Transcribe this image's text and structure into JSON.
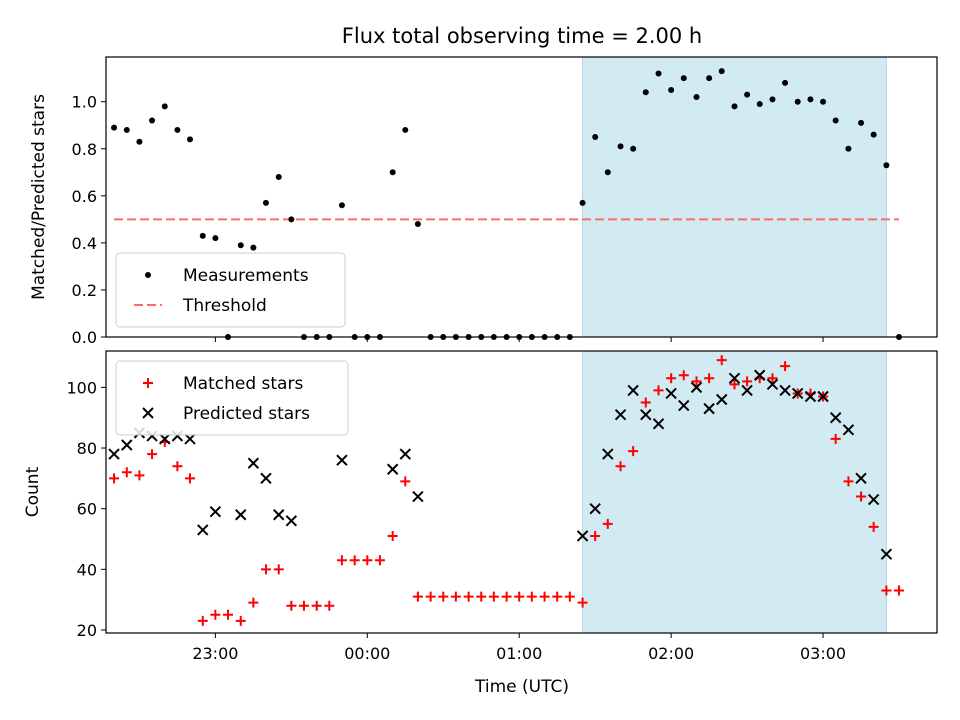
{
  "figure": {
    "title": "Flux total observing time = 2.00 h",
    "xlabel": "Time (UTC)"
  },
  "chart_data": [
    {
      "type": "scatter",
      "panel": "top",
      "ylabel": "Matched/Predicted stars",
      "xlim_hours": [
        -1.72,
        3.75
      ],
      "ylim": [
        0,
        1.19
      ],
      "yticks": [
        0.0,
        0.2,
        0.4,
        0.6,
        0.8,
        1.0
      ],
      "ytick_labels": [
        "0.0",
        "0.2",
        "0.4",
        "0.6",
        "0.8",
        "1.0"
      ],
      "x_tick_labels": [
        "23:00",
        "00:00",
        "01:00",
        "02:00",
        "03:00"
      ],
      "highlight": {
        "x_start_hours": 1.417,
        "x_end_hours": 3.417,
        "color": "#add8e6"
      },
      "threshold": {
        "name": "Threshold",
        "value": 0.5,
        "x_range_hours": [
          -1.667,
          3.5
        ],
        "color": "#ff6b6b"
      },
      "legend_position": "lower-left",
      "series": [
        {
          "name": "Measurements",
          "color": "#000000",
          "x": [
            -1.667,
            -1.583,
            -1.5,
            -1.417,
            -1.333,
            -1.25,
            -1.167,
            -1.083,
            -1.0,
            -0.917,
            -0.833,
            -0.75,
            -0.667,
            -0.583,
            -0.5,
            -0.417,
            -0.333,
            -0.25,
            -0.167,
            -0.083,
            0.0,
            0.083,
            0.167,
            0.25,
            0.333,
            0.417,
            0.5,
            0.583,
            0.667,
            0.75,
            0.833,
            0.917,
            1.0,
            1.083,
            1.167,
            1.25,
            1.333,
            1.417,
            1.5,
            1.583,
            1.667,
            1.75,
            1.833,
            1.917,
            2.0,
            2.083,
            2.167,
            2.25,
            2.333,
            2.417,
            2.5,
            2.583,
            2.667,
            2.75,
            2.833,
            2.917,
            3.0,
            3.083,
            3.167,
            3.25,
            3.333,
            3.417,
            3.5
          ],
          "y": [
            0.89,
            0.88,
            0.83,
            0.92,
            0.98,
            0.88,
            0.84,
            0.43,
            0.42,
            0.0,
            0.39,
            0.38,
            0.57,
            0.68,
            0.5,
            0.0,
            0.0,
            0.0,
            0.56,
            0.0,
            0.0,
            0.0,
            0.7,
            0.88,
            0.48,
            0.0,
            0.0,
            0.0,
            0.0,
            0.0,
            0.0,
            0.0,
            0.0,
            0.0,
            0.0,
            0.0,
            0.0,
            0.57,
            0.85,
            0.7,
            0.81,
            0.8,
            1.04,
            1.12,
            1.05,
            1.1,
            1.02,
            1.1,
            1.13,
            0.98,
            1.03,
            0.99,
            1.01,
            1.08,
            1.0,
            1.01,
            1.0,
            0.92,
            0.8,
            0.91,
            0.86,
            0.73,
            0.0
          ]
        }
      ]
    },
    {
      "type": "scatter",
      "panel": "bottom",
      "ylabel": "Count",
      "xlim_hours": [
        -1.72,
        3.75
      ],
      "ylim": [
        19,
        112
      ],
      "yticks": [
        20,
        40,
        60,
        80,
        100
      ],
      "ytick_labels": [
        "20",
        "40",
        "60",
        "80",
        "100"
      ],
      "x_tick_labels": [
        "23:00",
        "00:00",
        "01:00",
        "02:00",
        "03:00"
      ],
      "highlight": {
        "x_start_hours": 1.417,
        "x_end_hours": 3.417,
        "color": "#add8e6"
      },
      "legend_position": "upper-left",
      "series": [
        {
          "name": "Matched stars",
          "color": "#ff0000",
          "marker": "plus",
          "x": [
            -1.667,
            -1.583,
            -1.5,
            -1.417,
            -1.333,
            -1.25,
            -1.167,
            -1.083,
            -1.0,
            -0.917,
            -0.833,
            -0.75,
            -0.667,
            -0.583,
            -0.5,
            -0.417,
            -0.333,
            -0.25,
            -0.167,
            -0.083,
            0.0,
            0.083,
            0.167,
            0.25,
            0.333,
            0.417,
            0.5,
            0.583,
            0.667,
            0.75,
            0.833,
            0.917,
            1.0,
            1.083,
            1.167,
            1.25,
            1.333,
            1.417,
            1.5,
            1.583,
            1.667,
            1.75,
            1.833,
            1.917,
            2.0,
            2.083,
            2.167,
            2.25,
            2.333,
            2.417,
            2.5,
            2.583,
            2.667,
            2.75,
            2.833,
            2.917,
            3.0,
            3.083,
            3.167,
            3.25,
            3.333,
            3.417,
            3.5
          ],
          "y": [
            70,
            72,
            71,
            78,
            82,
            74,
            70,
            23,
            25,
            25,
            23,
            29,
            40,
            40,
            28,
            28,
            28,
            28,
            43,
            43,
            43,
            43,
            51,
            69,
            31,
            31,
            31,
            31,
            31,
            31,
            31,
            31,
            31,
            31,
            31,
            31,
            31,
            29,
            51,
            55,
            74,
            79,
            95,
            99,
            103,
            104,
            102,
            103,
            109,
            101,
            102,
            103,
            103,
            107,
            98,
            98,
            97,
            83,
            69,
            64,
            54,
            33,
            33
          ]
        },
        {
          "name": "Predicted stars",
          "color": "#000000",
          "marker": "x",
          "x": [
            -1.667,
            -1.583,
            -1.5,
            -1.417,
            -1.333,
            -1.25,
            -1.167,
            -1.083,
            -1.0,
            -0.833,
            -0.75,
            -0.667,
            -0.583,
            -0.5,
            -0.167,
            0.167,
            0.25,
            0.333,
            1.417,
            1.5,
            1.583,
            1.667,
            1.75,
            1.833,
            1.917,
            2.0,
            2.083,
            2.167,
            2.25,
            2.333,
            2.417,
            2.5,
            2.583,
            2.667,
            2.75,
            2.833,
            2.917,
            3.0,
            3.083,
            3.167,
            3.25,
            3.333,
            3.417
          ],
          "y": [
            78,
            81,
            85,
            84,
            83,
            84,
            83,
            53,
            59,
            58,
            75,
            70,
            58,
            56,
            76,
            73,
            78,
            64,
            51,
            60,
            78,
            91,
            99,
            91,
            88,
            98,
            94,
            100,
            93,
            96,
            103,
            99,
            104,
            101,
            99,
            98,
            97,
            97,
            90,
            86,
            70,
            63,
            45
          ]
        }
      ]
    }
  ]
}
